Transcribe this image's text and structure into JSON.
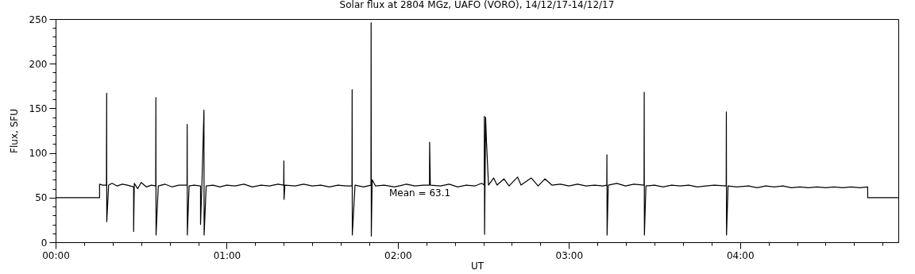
{
  "chart_data": {
    "type": "line",
    "title": "Solar flux at 2804 MGz, UAFO (VORO),  14/12/17-14/12/17",
    "xlabel": "UT",
    "ylabel": "Flux, SFU",
    "xlim": [
      0,
      4.925
    ],
    "ylim": [
      0,
      250
    ],
    "xticks": [
      {
        "value": 0,
        "label": "00:00"
      },
      {
        "value": 0.1667,
        "label": null
      },
      {
        "value": 0.3333,
        "label": null
      },
      {
        "value": 0.5,
        "label": null
      },
      {
        "value": 0.6667,
        "label": null
      },
      {
        "value": 0.8333,
        "label": null
      },
      {
        "value": 1,
        "label": "01:00"
      },
      {
        "value": 1.1667,
        "label": null
      },
      {
        "value": 1.3333,
        "label": null
      },
      {
        "value": 1.5,
        "label": null
      },
      {
        "value": 1.6667,
        "label": null
      },
      {
        "value": 1.8333,
        "label": null
      },
      {
        "value": 2,
        "label": "02:00"
      },
      {
        "value": 2.1667,
        "label": null
      },
      {
        "value": 2.3333,
        "label": null
      },
      {
        "value": 2.5,
        "label": null
      },
      {
        "value": 2.6667,
        "label": null
      },
      {
        "value": 2.8333,
        "label": null
      },
      {
        "value": 3,
        "label": "03:00"
      },
      {
        "value": 3.1667,
        "label": null
      },
      {
        "value": 3.3333,
        "label": null
      },
      {
        "value": 3.5,
        "label": null
      },
      {
        "value": 3.6667,
        "label": null
      },
      {
        "value": 3.8333,
        "label": null
      },
      {
        "value": 4,
        "label": "04:00"
      },
      {
        "value": 4.1667,
        "label": null
      },
      {
        "value": 4.3333,
        "label": null
      },
      {
        "value": 4.5,
        "label": null
      },
      {
        "value": 4.6667,
        "label": null
      },
      {
        "value": 4.8333,
        "label": null
      }
    ],
    "yticks": [
      0,
      {
        "value": 10,
        "label": null
      },
      {
        "value": 20,
        "label": null
      },
      {
        "value": 30,
        "label": null
      },
      {
        "value": 40,
        "label": null
      },
      50,
      {
        "value": 60,
        "label": null
      },
      {
        "value": 70,
        "label": null
      },
      {
        "value": 80,
        "label": null
      },
      {
        "value": 90,
        "label": null
      },
      100,
      {
        "value": 110,
        "label": null
      },
      {
        "value": 120,
        "label": null
      },
      {
        "value": 130,
        "label": null
      },
      {
        "value": 140,
        "label": null
      },
      150,
      {
        "value": 160,
        "label": null
      },
      {
        "value": 170,
        "label": null
      },
      {
        "value": 180,
        "label": null
      },
      {
        "value": 190,
        "label": null
      },
      200,
      {
        "value": 210,
        "label": null
      },
      {
        "value": 220,
        "label": null
      },
      {
        "value": 230,
        "label": null
      },
      {
        "value": 240,
        "label": null
      },
      250
    ],
    "grid": false,
    "marker": "none",
    "line_style": "solid",
    "annotations": [
      "Mean =   63.1"
    ],
    "series": [
      {
        "color": "#000000",
        "x": [
          0,
          0.257,
          0.257,
          0.275,
          0.297,
          0.2985,
          0.299,
          0.31,
          0.33,
          0.36,
          0.39,
          0.42,
          0.456,
          0.456,
          0.46,
          0.48,
          0.5,
          0.53,
          0.56,
          0.585,
          0.586,
          0.587,
          0.6,
          0.64,
          0.68,
          0.72,
          0.768,
          0.769,
          0.77,
          0.78,
          0.81,
          0.847,
          0.847,
          0.855,
          0.867,
          0.868,
          0.88,
          0.92,
          0.96,
          1.0,
          1.05,
          1.1,
          1.15,
          1.2,
          1.25,
          1.3,
          1.333,
          1.334,
          1.335,
          1.34,
          1.4,
          1.45,
          1.5,
          1.55,
          1.6,
          1.65,
          1.7,
          1.732,
          1.733,
          1.734,
          1.75,
          1.8,
          1.843,
          1.844,
          1.845,
          1.85,
          1.87,
          1.92,
          1.98,
          2.05,
          2.1,
          2.15,
          2.185,
          2.186,
          2.19,
          2.25,
          2.3,
          2.35,
          2.4,
          2.45,
          2.49,
          2.505,
          2.506,
          2.507,
          2.513,
          2.518,
          2.53,
          2.56,
          2.58,
          2.62,
          2.65,
          2.7,
          2.72,
          2.78,
          2.82,
          2.86,
          2.9,
          2.95,
          3.0,
          3.05,
          3.1,
          3.15,
          3.2,
          3.221,
          3.222,
          3.223,
          3.23,
          3.28,
          3.33,
          3.38,
          3.439,
          3.44,
          3.441,
          3.45,
          3.5,
          3.55,
          3.6,
          3.65,
          3.7,
          3.75,
          3.8,
          3.85,
          3.919,
          3.92,
          3.921,
          3.93,
          3.98,
          4.05,
          4.1,
          4.15,
          4.2,
          4.25,
          4.3,
          4.35,
          4.4,
          4.45,
          4.5,
          4.55,
          4.6,
          4.65,
          4.7,
          4.746,
          4.746,
          4.925
        ],
        "values": [
          50,
          50,
          65,
          64,
          64,
          167,
          23,
          64,
          66,
          63,
          65,
          64,
          62,
          12,
          66,
          60,
          67,
          62,
          64,
          63,
          162,
          8,
          63,
          65,
          62,
          64,
          64,
          132,
          8,
          63,
          64,
          63,
          20,
          64,
          148,
          8,
          63,
          64,
          62,
          64,
          63,
          65,
          62,
          64,
          63,
          65,
          64,
          91,
          48,
          64,
          63,
          65,
          63,
          64,
          62,
          64,
          63,
          63,
          171,
          8,
          64,
          62,
          64,
          246,
          7,
          70,
          63,
          64,
          62,
          65,
          63,
          64,
          64,
          112,
          64,
          63,
          65,
          62,
          64,
          63,
          66,
          64,
          141,
          9,
          140,
          113,
          64,
          72,
          64,
          71,
          63,
          73,
          64,
          72,
          63,
          71,
          64,
          65,
          63,
          65,
          63,
          64,
          63,
          64,
          98,
          8,
          64,
          66,
          63,
          65,
          64,
          168,
          8,
          63,
          64,
          62,
          64,
          63,
          64,
          62,
          63,
          64,
          63,
          146,
          8,
          63,
          62,
          63,
          61,
          63,
          62,
          63,
          61,
          62,
          61,
          62,
          61,
          62,
          61,
          62,
          61,
          62,
          50,
          50
        ]
      }
    ]
  }
}
